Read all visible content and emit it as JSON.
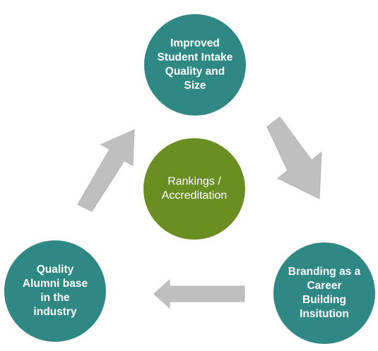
{
  "nodes": {
    "top": "Improved Student Intake Quality and Size",
    "bottom_right": "Branding as a Career Building Insitution",
    "bottom_left": "Quality Alumni base in the industry",
    "center": "Rankings / Accreditation"
  },
  "colors": {
    "teal": "#2f8884",
    "green": "#6b8e23",
    "arrow": "#bfbfbf"
  }
}
